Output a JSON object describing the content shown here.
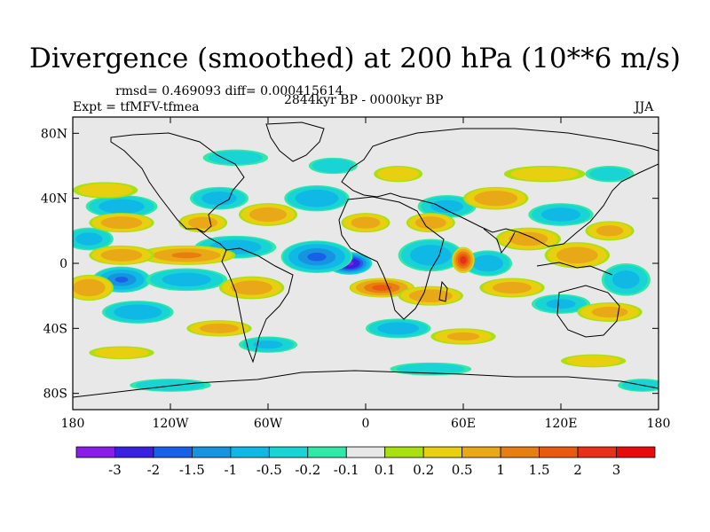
{
  "chart_data": {
    "type": "heatmap",
    "title": "Divergence (smoothed) at 200 hPa (10**6 m/s)",
    "stats": "rmsd= 0.469093 diff= 0.000415614",
    "left_label": "Expt = tfMFV-tfmea",
    "center_label": "2844kyr BP - 0000kyr BP",
    "right_label": "JJA",
    "x_ticks": [
      "180",
      "120W",
      "60W",
      "0",
      "60E",
      "120E",
      "180"
    ],
    "x_tick_values": [
      -180,
      -120,
      -60,
      0,
      60,
      120,
      180
    ],
    "y_ticks": [
      "80N",
      "40N",
      "0",
      "40S",
      "80S"
    ],
    "y_tick_values": [
      80,
      40,
      0,
      -40,
      -80
    ],
    "xlim": [
      -180,
      180
    ],
    "ylim": [
      -90,
      90
    ],
    "colorbar": {
      "labels": [
        "-3",
        "-2",
        "-1.5",
        "-1",
        "-0.5",
        "-0.2",
        "-0.1",
        "0.1",
        "0.2",
        "0.5",
        "1",
        "1.5",
        "2",
        "3"
      ],
      "levels": [
        -3,
        -2,
        -1.5,
        -1,
        -0.5,
        -0.2,
        -0.1,
        0.1,
        0.2,
        0.5,
        1,
        1.5,
        2,
        3
      ],
      "colors": [
        "#8a1ce8",
        "#3a20e0",
        "#1a5fe8",
        "#1694e0",
        "#10b8e6",
        "#18d4d4",
        "#30e8a8",
        "#e8e8e8",
        "#a8e010",
        "#e8d010",
        "#e8a818",
        "#e87d10",
        "#e85a10",
        "#e83018",
        "#e80a0a"
      ]
    },
    "anomalies": [
      {
        "lon": -10,
        "lat": 0,
        "value": -3.3,
        "rlon": 14,
        "rlat": 7
      },
      {
        "lon": -30,
        "lat": 4,
        "value": -1.6,
        "rlon": 22,
        "rlat": 10
      },
      {
        "lon": -150,
        "lat": -10,
        "value": -1.5,
        "rlon": 18,
        "rlat": 8
      },
      {
        "lon": -110,
        "lat": -10,
        "value": -0.7,
        "rlon": 25,
        "rlat": 7
      },
      {
        "lon": -80,
        "lat": 10,
        "value": -0.8,
        "rlon": 25,
        "rlat": 7
      },
      {
        "lon": -150,
        "lat": 35,
        "value": -0.8,
        "rlon": 22,
        "rlat": 7
      },
      {
        "lon": -90,
        "lat": 40,
        "value": -0.7,
        "rlon": 18,
        "rlat": 7
      },
      {
        "lon": -30,
        "lat": 40,
        "value": -0.9,
        "rlon": 20,
        "rlat": 8
      },
      {
        "lon": 40,
        "lat": 5,
        "value": -0.8,
        "rlon": 20,
        "rlat": 10
      },
      {
        "lon": 50,
        "lat": 35,
        "value": -0.6,
        "rlon": 18,
        "rlat": 7
      },
      {
        "lon": 120,
        "lat": 30,
        "value": -0.7,
        "rlon": 20,
        "rlat": 7
      },
      {
        "lon": 75,
        "lat": 0,
        "value": -0.8,
        "rlon": 15,
        "rlat": 8
      },
      {
        "lon": 160,
        "lat": -10,
        "value": -0.6,
        "rlon": 15,
        "rlat": 10
      },
      {
        "lon": -140,
        "lat": -30,
        "value": -0.9,
        "rlon": 22,
        "rlat": 7
      },
      {
        "lon": 20,
        "lat": -40,
        "value": -0.8,
        "rlon": 20,
        "rlat": 6
      },
      {
        "lon": 120,
        "lat": -25,
        "value": -0.5,
        "rlon": 18,
        "rlat": 6
      },
      {
        "lon": -170,
        "lat": 15,
        "value": -0.6,
        "rlon": 15,
        "rlat": 7
      },
      {
        "lon": -60,
        "lat": -50,
        "value": -0.5,
        "rlon": 18,
        "rlat": 5
      },
      {
        "lon": -80,
        "lat": 65,
        "value": -0.3,
        "rlon": 20,
        "rlat": 5
      },
      {
        "lon": 10,
        "lat": -15,
        "value": 1.7,
        "rlon": 20,
        "rlat": 6
      },
      {
        "lon": 60,
        "lat": 2,
        "value": 2.4,
        "rlon": 7,
        "rlat": 8
      },
      {
        "lon": -110,
        "lat": 5,
        "value": 1.0,
        "rlon": 30,
        "rlat": 6
      },
      {
        "lon": -150,
        "lat": 5,
        "value": 0.8,
        "rlon": 20,
        "rlat": 6
      },
      {
        "lon": -170,
        "lat": -15,
        "value": 0.9,
        "rlon": 15,
        "rlat": 8
      },
      {
        "lon": -70,
        "lat": -15,
        "value": 0.8,
        "rlon": 20,
        "rlat": 7
      },
      {
        "lon": -150,
        "lat": 25,
        "value": 0.8,
        "rlon": 20,
        "rlat": 6
      },
      {
        "lon": -100,
        "lat": 25,
        "value": 0.7,
        "rlon": 15,
        "rlat": 6
      },
      {
        "lon": -60,
        "lat": 30,
        "value": 0.8,
        "rlon": 18,
        "rlat": 7
      },
      {
        "lon": 0,
        "lat": 25,
        "value": 0.7,
        "rlon": 15,
        "rlat": 6
      },
      {
        "lon": 40,
        "lat": 25,
        "value": 0.8,
        "rlon": 15,
        "rlat": 6
      },
      {
        "lon": 80,
        "lat": 40,
        "value": 0.9,
        "rlon": 20,
        "rlat": 7
      },
      {
        "lon": 100,
        "lat": 15,
        "value": 0.7,
        "rlon": 20,
        "rlat": 7
      },
      {
        "lon": 130,
        "lat": 5,
        "value": 0.8,
        "rlon": 20,
        "rlat": 8
      },
      {
        "lon": 150,
        "lat": 20,
        "value": 0.6,
        "rlon": 15,
        "rlat": 6
      },
      {
        "lon": 40,
        "lat": -20,
        "value": 0.9,
        "rlon": 20,
        "rlat": 6
      },
      {
        "lon": 90,
        "lat": -15,
        "value": 0.7,
        "rlon": 20,
        "rlat": 6
      },
      {
        "lon": 150,
        "lat": -30,
        "value": 0.6,
        "rlon": 20,
        "rlat": 6
      },
      {
        "lon": -90,
        "lat": -40,
        "value": 0.7,
        "rlon": 20,
        "rlat": 5
      },
      {
        "lon": 60,
        "lat": -45,
        "value": 0.5,
        "rlon": 20,
        "rlat": 5
      },
      {
        "lon": -160,
        "lat": 45,
        "value": 0.3,
        "rlon": 20,
        "rlat": 5
      },
      {
        "lon": 20,
        "lat": 55,
        "value": 0.4,
        "rlon": 15,
        "rlat": 5
      },
      {
        "lon": 110,
        "lat": 55,
        "value": 0.3,
        "rlon": 25,
        "rlat": 5
      },
      {
        "lon": -20,
        "lat": 60,
        "value": -0.4,
        "rlon": 15,
        "rlat": 5
      },
      {
        "lon": 150,
        "lat": 55,
        "value": -0.3,
        "rlon": 15,
        "rlat": 5
      },
      {
        "lon": -150,
        "lat": -55,
        "value": 0.3,
        "rlon": 20,
        "rlat": 4
      },
      {
        "lon": -120,
        "lat": -75,
        "value": -0.4,
        "rlon": 25,
        "rlat": 4
      },
      {
        "lon": 40,
        "lat": -65,
        "value": -0.3,
        "rlon": 25,
        "rlat": 4
      },
      {
        "lon": 140,
        "lat": -60,
        "value": 0.3,
        "rlon": 20,
        "rlat": 4
      },
      {
        "lon": 170,
        "lat": -75,
        "value": -0.3,
        "rlon": 15,
        "rlat": 4
      }
    ]
  }
}
